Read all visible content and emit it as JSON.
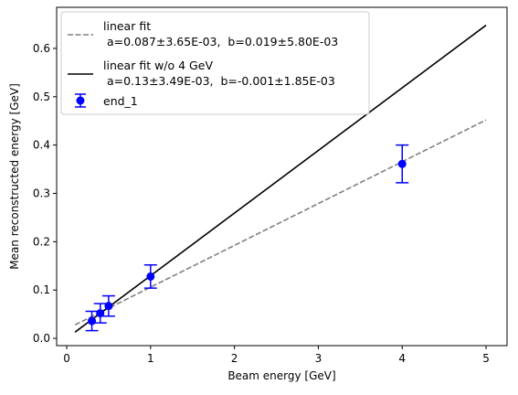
{
  "chart_data": {
    "type": "scatter",
    "title": "",
    "xlabel": "Beam energy [GeV]",
    "ylabel": "Mean reconstructed energy [GeV]",
    "xlim": [
      -0.12,
      5.25
    ],
    "ylim": [
      -0.015,
      0.685
    ],
    "xticks": [
      0,
      1,
      2,
      3,
      4,
      5
    ],
    "yticks": [
      0.0,
      0.1,
      0.2,
      0.3,
      0.4,
      0.5,
      0.6
    ],
    "xtick_labels": [
      "0",
      "1",
      "2",
      "3",
      "4",
      "5"
    ],
    "ytick_labels": [
      "0.0",
      "0.1",
      "0.2",
      "0.3",
      "0.4",
      "0.5",
      "0.6"
    ],
    "grid": false,
    "legend_position": "top-left",
    "fit_lines": [
      {
        "legend_label_line1": "linear fit",
        "legend_label_line2": " a=0.087±3.65E-03,  b=0.019±5.80E-03",
        "style": "dashed",
        "color": "#808080",
        "x": [
          0.1,
          5.0
        ],
        "y": [
          0.028,
          0.452
        ]
      },
      {
        "legend_label_line1": "linear fit w/o 4 GeV",
        "legend_label_line2": " a=0.13±3.49E-03,  b=-0.001±1.85E-03",
        "style": "solid",
        "color": "#000000",
        "x": [
          0.1,
          5.0
        ],
        "y": [
          0.013,
          0.648
        ]
      }
    ],
    "series": [
      {
        "name": "end_1",
        "color": "#0000ff",
        "marker": "circle",
        "x": [
          0.3,
          0.4,
          0.5,
          1.0,
          4.0
        ],
        "y": [
          0.036,
          0.052,
          0.067,
          0.128,
          0.361
        ],
        "yerr": [
          0.02,
          0.02,
          0.021,
          0.024,
          0.039
        ]
      }
    ]
  }
}
